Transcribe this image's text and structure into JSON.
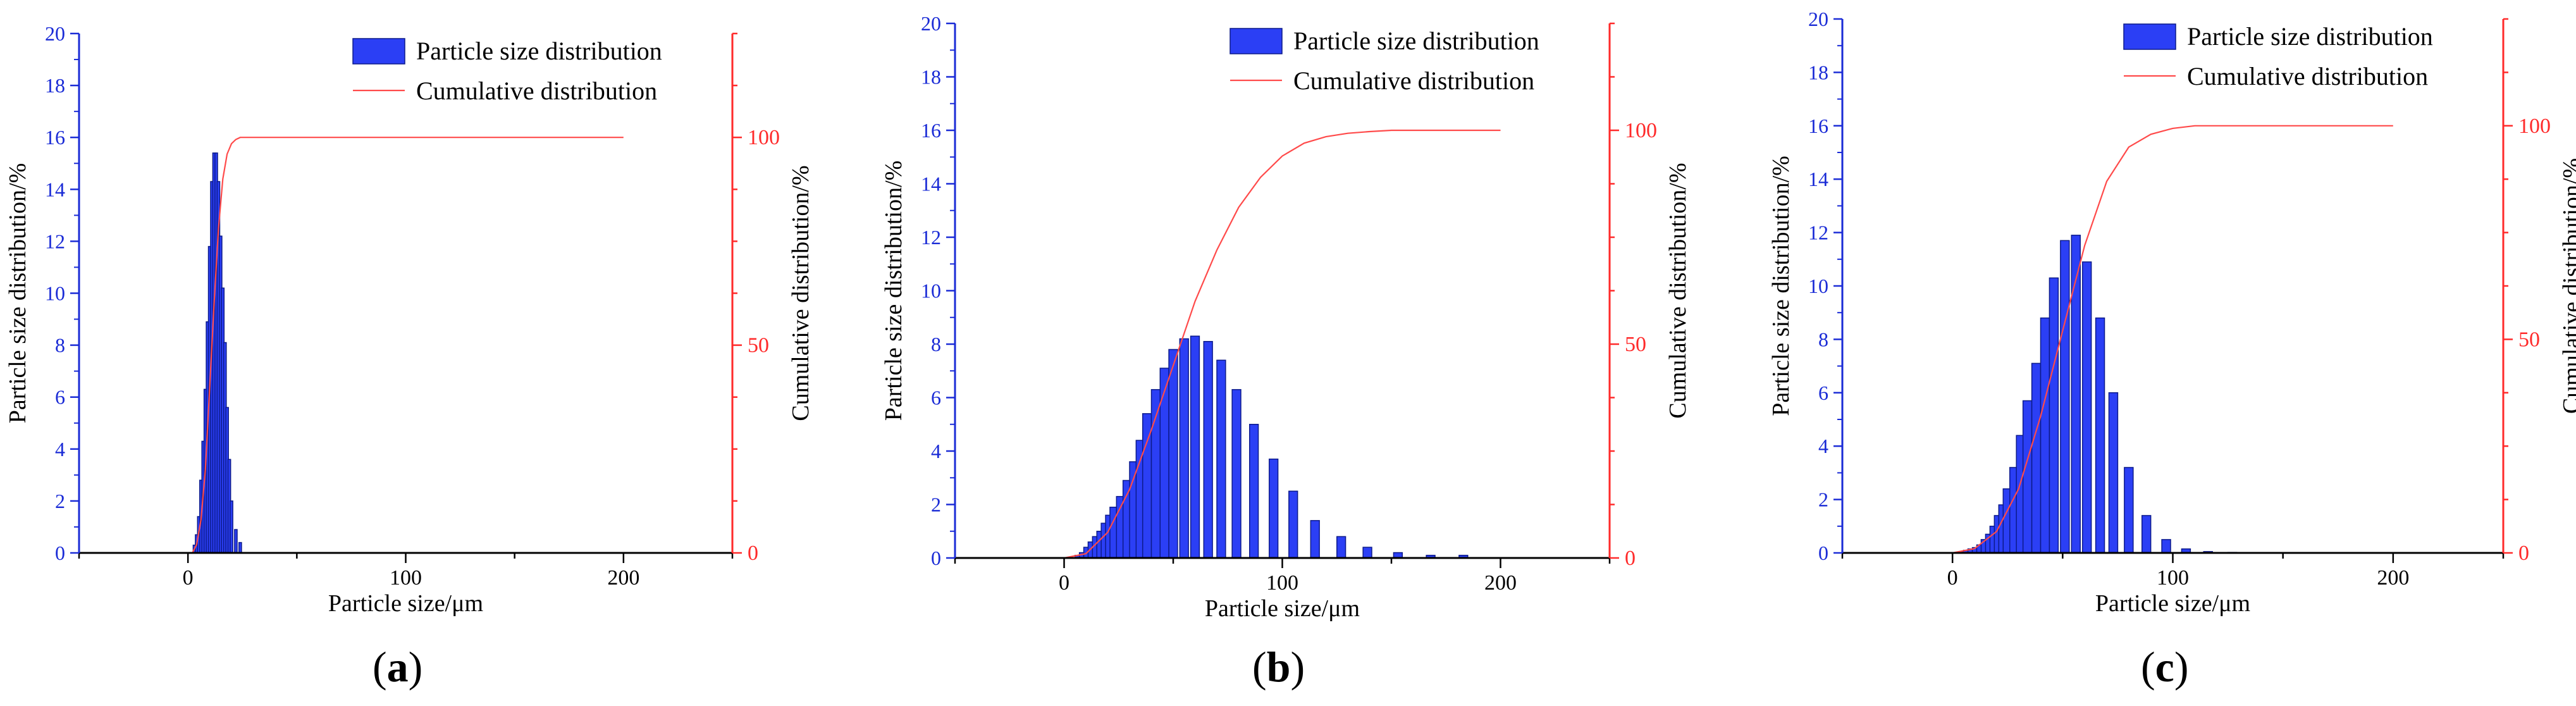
{
  "colors": {
    "bar_fill": "#2b3ff5",
    "bar_stroke": "#0c1a8a",
    "cumulative_line": "#ff4a4a",
    "left_axis_text": "#1a2bd6",
    "right_axis_text": "#ff2a2a",
    "axis": "#000000"
  },
  "legend_labels": {
    "bars": "Particle size distribution",
    "line": "Cumulative distribution"
  },
  "chart_data": [
    {
      "type": "bar",
      "panel_label": "a",
      "xlabel": "Particle size/μm",
      "ylabel": "Particle size distribution/%",
      "y2label": "Cumulative distribution/%",
      "xlim": [
        -50,
        250
      ],
      "ylim": [
        0,
        20
      ],
      "y2lim": [
        0,
        125
      ],
      "x_ticks": [
        0,
        100,
        200
      ],
      "y_ticks": [
        0,
        2,
        4,
        6,
        8,
        10,
        12,
        14,
        16,
        18,
        20
      ],
      "y2_ticks": [
        0,
        50,
        100
      ],
      "legend_position": "top-right",
      "bars": {
        "x": [
          3,
          4,
          5,
          6,
          7,
          8,
          9,
          10,
          11,
          12,
          13,
          14,
          15,
          16,
          17,
          18,
          19,
          20,
          22,
          24
        ],
        "width": 1.2,
        "values": [
          0.3,
          0.7,
          1.4,
          2.8,
          4.3,
          6.3,
          8.9,
          11.8,
          14.3,
          15.4,
          15.4,
          14.3,
          12.2,
          10.2,
          8.1,
          5.6,
          3.6,
          2.0,
          0.9,
          0.4
        ]
      },
      "cumulative": {
        "x": [
          2,
          4,
          6,
          8,
          10,
          12,
          14,
          16,
          18,
          20,
          22,
          24,
          30,
          50,
          100,
          150,
          200
        ],
        "values": [
          0,
          2,
          8,
          20,
          40,
          60,
          78,
          90,
          96,
          98.5,
          99.5,
          100,
          100,
          100,
          100,
          100,
          100
        ]
      }
    },
    {
      "type": "bar",
      "panel_label": "b",
      "xlabel": "Particle size/μm",
      "ylabel": "Particle size distribution/%",
      "y2label": "Cumulative distribution/%",
      "xlim": [
        -50,
        250
      ],
      "ylim": [
        0,
        20
      ],
      "y2lim": [
        0,
        125
      ],
      "x_ticks": [
        0,
        100,
        200
      ],
      "y_ticks": [
        0,
        2,
        4,
        6,
        8,
        10,
        12,
        14,
        16,
        18,
        20
      ],
      "y2_ticks": [
        0,
        50,
        100
      ],
      "legend_position": "top-right",
      "bars": {
        "x": [
          7,
          9,
          11,
          13,
          15,
          17,
          19,
          21,
          23,
          26,
          29,
          32,
          35,
          38,
          42,
          46,
          50,
          55,
          60,
          66,
          72,
          79,
          87,
          96,
          105,
          115,
          127,
          139,
          153,
          168,
          183
        ],
        "width": 4,
        "values": [
          0.1,
          0.2,
          0.4,
          0.6,
          0.8,
          1.0,
          1.3,
          1.6,
          1.9,
          2.3,
          2.9,
          3.6,
          4.4,
          5.4,
          6.3,
          7.1,
          7.8,
          8.2,
          8.3,
          8.1,
          7.4,
          6.3,
          5.0,
          3.7,
          2.5,
          1.4,
          0.8,
          0.4,
          0.2,
          0.1,
          0.1
        ]
      },
      "cumulative": {
        "x": [
          0,
          10,
          20,
          30,
          40,
          50,
          60,
          70,
          80,
          90,
          100,
          110,
          120,
          130,
          140,
          150,
          170,
          200
        ],
        "values": [
          0,
          1,
          6,
          16,
          30,
          45,
          60,
          72,
          82,
          89,
          94,
          97,
          98.5,
          99.3,
          99.7,
          100,
          100,
          100
        ]
      }
    },
    {
      "type": "bar",
      "panel_label": "c",
      "xlabel": "Particle size/μm",
      "ylabel": "Particle size distribution/%",
      "y2label": "Cumulative distribution/%",
      "xlim": [
        -50,
        250
      ],
      "ylim": [
        0,
        20
      ],
      "y2lim": [
        0,
        125
      ],
      "x_ticks": [
        0,
        100,
        200
      ],
      "y_ticks": [
        0,
        2,
        4,
        6,
        8,
        10,
        12,
        14,
        16,
        18,
        20
      ],
      "y2_ticks": [
        0,
        50,
        100
      ],
      "legend_position": "top-right",
      "bars": {
        "x": [
          5,
          7,
          9,
          11,
          13,
          15,
          17,
          19,
          21,
          23,
          25,
          28,
          31,
          34,
          38,
          42,
          46,
          51,
          56,
          61,
          67,
          73,
          80,
          88,
          97,
          106,
          116,
          127
        ],
        "width": 4,
        "values": [
          0.05,
          0.1,
          0.15,
          0.2,
          0.3,
          0.5,
          0.7,
          1.0,
          1.4,
          1.8,
          2.4,
          3.2,
          4.4,
          5.7,
          7.1,
          8.8,
          10.3,
          11.7,
          11.9,
          10.9,
          8.8,
          6.0,
          3.2,
          1.4,
          0.5,
          0.15,
          0.05,
          0.02
        ]
      },
      "cumulative": {
        "x": [
          0,
          10,
          20,
          30,
          40,
          50,
          60,
          70,
          80,
          90,
          100,
          110,
          120,
          130,
          150,
          200
        ],
        "values": [
          0,
          1,
          5,
          15,
          32,
          52,
          72,
          87,
          95,
          98,
          99.4,
          100,
          100,
          100,
          100,
          100
        ]
      }
    }
  ]
}
